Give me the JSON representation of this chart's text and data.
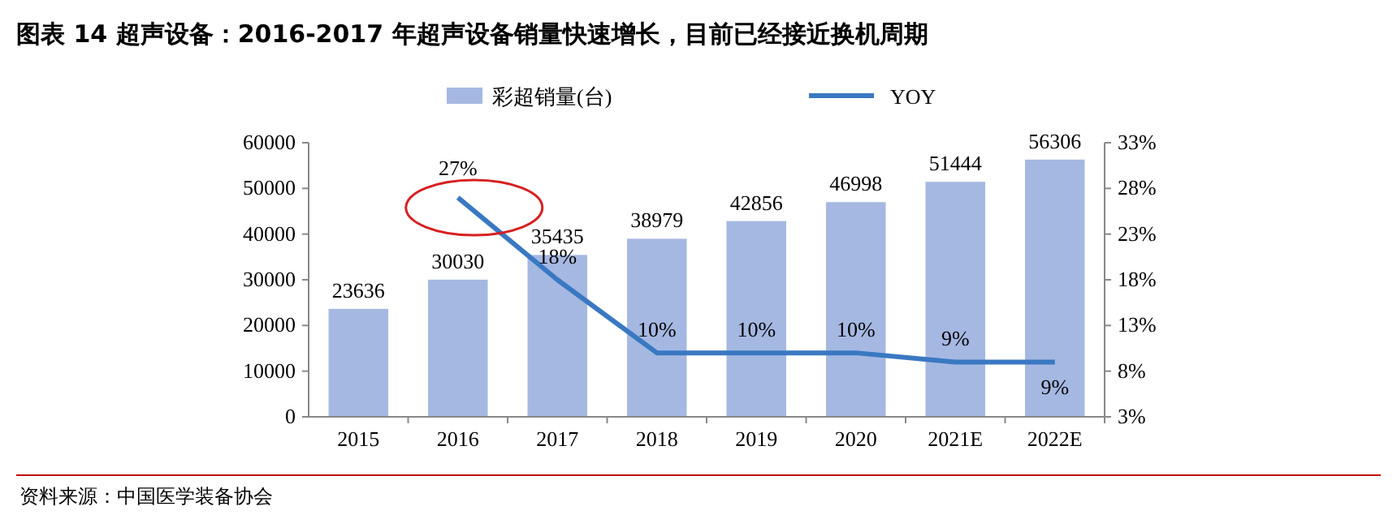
{
  "chart_data": {
    "type": "bar",
    "title": "图表 14 超声设备：2016-2017 年超声设备销量快速增长，目前已经接近换机周期",
    "categories": [
      "2015",
      "2016",
      "2017",
      "2018",
      "2019",
      "2020",
      "2021E",
      "2022E"
    ],
    "series": [
      {
        "name": "彩超销量(台)",
        "color": "#a5b8e2",
        "values": [
          23636,
          30030,
          35435,
          38979,
          42856,
          46998,
          51444,
          56306
        ],
        "value_labels": [
          "23636",
          "30030",
          "35435",
          "38979",
          "42856",
          "46998",
          "51444",
          "56306"
        ]
      },
      {
        "name": "YOY",
        "type": "line",
        "axis": "y2",
        "color": "#3a78c2",
        "values": [
          null,
          27,
          18,
          10,
          10,
          10,
          9,
          9
        ],
        "value_labels": [
          null,
          "27%",
          "18%",
          "10%",
          "10%",
          "10%",
          "9%",
          "9%"
        ]
      }
    ],
    "ylim": [
      0,
      60000
    ],
    "yticks": [
      0,
      10000,
      20000,
      30000,
      40000,
      50000,
      60000
    ],
    "y2lim": [
      3,
      33
    ],
    "y2ticks": [
      {
        "value": 3,
        "label": "3%"
      },
      {
        "value": 8,
        "label": "8%"
      },
      {
        "value": 13,
        "label": "13%"
      },
      {
        "value": 18,
        "label": "18%"
      },
      {
        "value": 23,
        "label": "23%"
      },
      {
        "value": 28,
        "label": "28%"
      },
      {
        "value": 33,
        "label": "33%"
      }
    ],
    "legend": "top",
    "grid": false,
    "annotations": [
      "资料来源：中国医学装备协会"
    ]
  }
}
